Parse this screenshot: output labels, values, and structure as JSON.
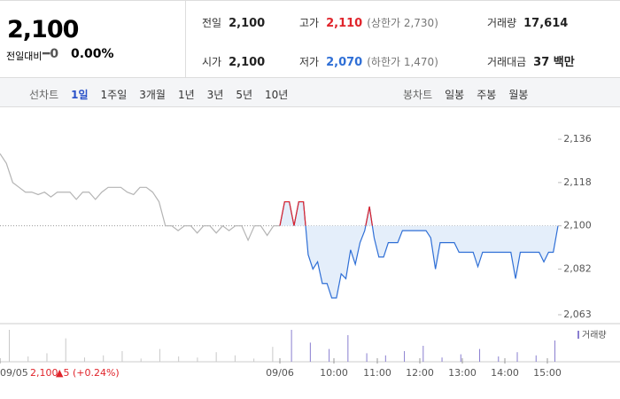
{
  "header": {
    "price": "2,100",
    "change_label": "전일대비",
    "change": "━0",
    "change_pct": "0.00%"
  },
  "quotes": [
    {
      "label": "전일",
      "value": "2,100"
    },
    {
      "label": "고가",
      "value": "2,110",
      "note": "(상한가 2,730)"
    },
    {
      "label": "거래량",
      "value": "17,614"
    },
    {
      "label": "시가",
      "value": "2,100"
    },
    {
      "label": "저가",
      "value": "2,070",
      "note": "(하한가 1,470)"
    },
    {
      "label": "거래대금",
      "value": "37 백만"
    }
  ],
  "tabs": {
    "line_label": "선차트",
    "line": [
      "1일",
      "1주일",
      "3개월",
      "1년",
      "3년",
      "5년",
      "10년"
    ],
    "candle_label": "봉차트",
    "candle": [
      "일봉",
      "주봉",
      "월봉"
    ]
  },
  "chart_data": {
    "type": "line",
    "x_labels": [
      "09/05",
      "09/06",
      "10:00",
      "11:00",
      "12:00",
      "13:00",
      "14:00",
      "15:00"
    ],
    "ylim": [
      2059.3,
      2142.3
    ],
    "yticks": [
      {
        "value": 2063,
        "label": "2,063"
      },
      {
        "value": 2082,
        "label": "2,082"
      },
      {
        "value": 2100,
        "label": "2,100"
      },
      {
        "value": 2118,
        "label": "2,118"
      },
      {
        "value": 2136,
        "label": "2,136"
      }
    ],
    "reference": 2100,
    "series": [
      {
        "color": "#b4b4b4",
        "values": [
          2130,
          2126,
          2118,
          2116,
          2114,
          2114,
          2113,
          2114,
          2112,
          2114,
          2114,
          2114,
          2111,
          2114,
          2114,
          2111,
          2114,
          2116,
          2116,
          2116,
          2114,
          2113,
          2116,
          2116,
          2114,
          2110,
          2100,
          2100,
          2098,
          2100,
          2100,
          2097,
          2100,
          2100,
          2097,
          2100,
          2098,
          2100,
          2100,
          2094,
          2100,
          2100,
          2096,
          2100,
          2100
        ]
      },
      {
        "color": "#2f6fd6",
        "up_color": "#e0242b",
        "fill": "#e4eefa",
        "values": [
          2100,
          2110,
          2110,
          2100,
          2110,
          2110,
          2088,
          2082,
          2085,
          2076,
          2076,
          2070,
          2070,
          2080,
          2078,
          2090,
          2084,
          2093,
          2098,
          2108,
          2095,
          2087,
          2087,
          2093,
          2093,
          2093,
          2098,
          2098,
          2098,
          2098,
          2098,
          2098,
          2095,
          2082,
          2093,
          2093,
          2093,
          2093,
          2089,
          2089,
          2089,
          2089,
          2083,
          2089,
          2089,
          2089,
          2089,
          2089,
          2089,
          2089,
          2078,
          2089,
          2089,
          2089,
          2089,
          2089,
          2085,
          2089,
          2089,
          2100
        ]
      }
    ],
    "volume": {
      "name": "거래량",
      "color": "#8a7fd0",
      "values": [
        30,
        5,
        8,
        22,
        4,
        6,
        10,
        3,
        12,
        5,
        4,
        9,
        6,
        3,
        14,
        30,
        18,
        12,
        25,
        8,
        6,
        10,
        15,
        4,
        7,
        12,
        5,
        9,
        6,
        20
      ]
    },
    "hover": {
      "date": "09/05",
      "price": "2,100",
      "change": "▲5 (+0.24%)"
    }
  }
}
